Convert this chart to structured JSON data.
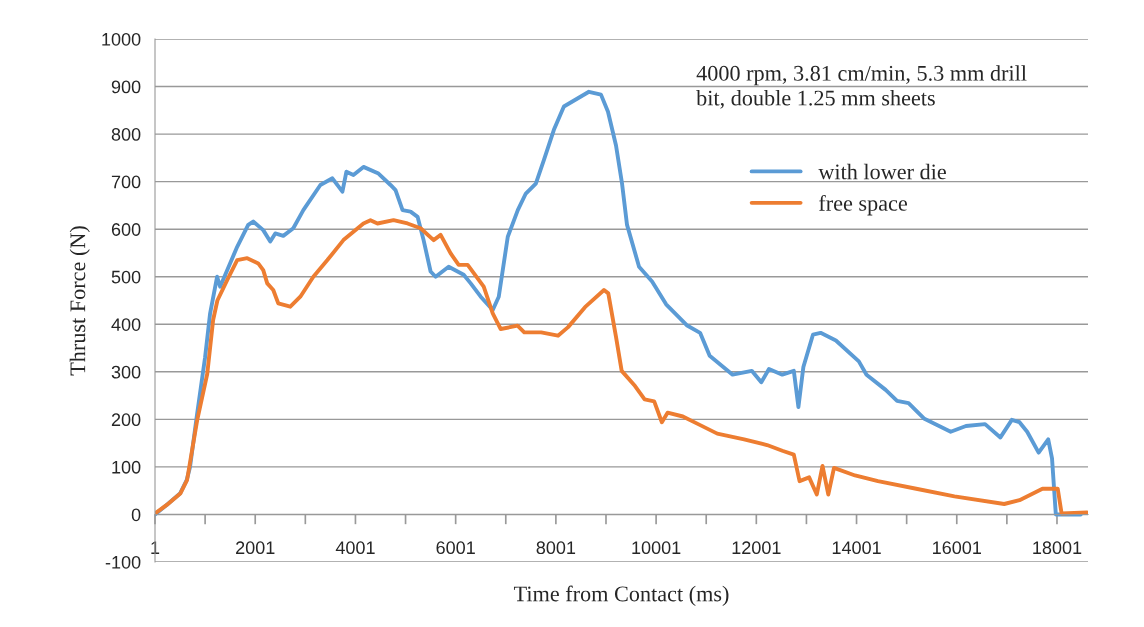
{
  "chart_data": {
    "type": "line",
    "xlabel": "Time from Contact (ms)",
    "ylabel": "Thrust Force (N)",
    "annotations": [
      "4000 rpm, 3.81 cm/min, 5.3 mm drill\nbit, double 1.25 mm sheets"
    ],
    "xlim": [
      1,
      18620
    ],
    "ylim": [
      -100,
      1000
    ],
    "xticks": [
      1,
      {
        "value": 1001,
        "label": null
      },
      2001,
      {
        "value": 3001,
        "label": null
      },
      4001,
      {
        "value": 5001,
        "label": null
      },
      6001,
      {
        "value": 7001,
        "label": null
      },
      8001,
      {
        "value": 9001,
        "label": null
      },
      10001,
      {
        "value": 11001,
        "label": null
      },
      12001,
      {
        "value": 13001,
        "label": null
      },
      14001,
      {
        "value": 15001,
        "label": null
      },
      16001,
      {
        "value": 17001,
        "label": null
      },
      18001
    ],
    "yticks": [
      -100,
      0,
      100,
      200,
      300,
      400,
      500,
      600,
      700,
      800,
      900,
      1000
    ],
    "grid": "y",
    "legend": "top right",
    "marker": "none",
    "line_style": "solid",
    "series": [
      {
        "name": "with lower die",
        "color": "#5b9bd5",
        "x": [
          1,
          233,
          500,
          633,
          700,
          833,
          1000,
          1101,
          1241,
          1301,
          1641,
          1861,
          1961,
          2161,
          2301,
          2401,
          2561,
          2761,
          2961,
          3301,
          3541,
          3741,
          3821,
          3961,
          4161,
          4461,
          4701,
          4801,
          4941,
          5101,
          5241,
          5361,
          5501,
          5601,
          5861,
          6161,
          6301,
          6501,
          6741,
          6861,
          7041,
          7241,
          7401,
          7601,
          7761,
          7961,
          8161,
          8661,
          8901,
          9041,
          9201,
          9321,
          9421,
          9661,
          9921,
          10201,
          10612,
          10879,
          11070,
          11528,
          11910,
          12100,
          12253,
          12520,
          12749,
          12841,
          12940,
          13131,
          13284,
          13589,
          14047,
          14200,
          14582,
          14810,
          15040,
          15345,
          15880,
          16185,
          16566,
          16872,
          17100,
          17253,
          17406,
          17635,
          17826,
          17902,
          17978,
          18475
        ],
        "values": [
          0,
          20,
          44,
          72,
          100,
          205,
          330,
          423,
          500,
          479,
          563,
          609,
          616,
          598,
          574,
          591,
          586,
          602,
          640,
          693,
          707,
          679,
          721,
          714,
          731,
          717,
          693,
          682,
          640,
          637,
          626,
          577,
          511,
          500,
          521,
          504,
          486,
          458,
          430,
          458,
          584,
          640,
          675,
          696,
          745,
          809,
          858,
          889,
          883,
          847,
          776,
          696,
          609,
          521,
          490,
          442,
          398,
          382,
          334,
          294,
          302,
          278,
          306,
          294,
          302,
          226,
          310,
          378,
          382,
          366,
          322,
          294,
          262,
          239,
          234,
          202,
          174,
          186,
          190,
          162,
          199,
          194,
          174,
          130,
          158,
          118,
          0,
          0
        ]
      },
      {
        "name": "free space",
        "color": "#ed7d31",
        "x": [
          1,
          236,
          506,
          640,
          842,
          1044,
          1161,
          1246,
          1441,
          1641,
          1841,
          2061,
          2161,
          2241,
          2361,
          2461,
          2701,
          2901,
          3161,
          3441,
          3761,
          4161,
          4301,
          4441,
          4761,
          5041,
          5301,
          5561,
          5701,
          5901,
          6061,
          6241,
          6561,
          6741,
          6900,
          7236,
          7370,
          7707,
          8043,
          8245,
          8582,
          8961,
          9047,
          9200,
          9314,
          9581,
          9772,
          9963,
          10116,
          10230,
          10535,
          10841,
          11222,
          11757,
          12215,
          12520,
          12749,
          12864,
          13055,
          13208,
          13322,
          13437,
          13551,
          13971,
          14429,
          15192,
          15955,
          16948,
          17253,
          17711,
          18016,
          18093,
          18600
        ],
        "values": [
          2,
          20,
          44,
          72,
          198,
          296,
          409,
          450,
          493,
          535,
          539,
          528,
          514,
          486,
          472,
          444,
          437,
          458,
          500,
          535,
          577,
          612,
          619,
          612,
          619,
          612,
          602,
          577,
          588,
          549,
          525,
          525,
          479,
          423,
          390,
          397,
          383,
          383,
          376,
          394,
          436,
          472,
          465,
          374,
          302,
          270,
          242,
          238,
          194,
          214,
          206,
          190,
          170,
          158,
          146,
          134,
          126,
          70,
          78,
          42,
          102,
          42,
          98,
          82,
          70,
          54,
          38,
          22,
          30,
          54,
          54,
          2,
          4
        ]
      }
    ]
  }
}
